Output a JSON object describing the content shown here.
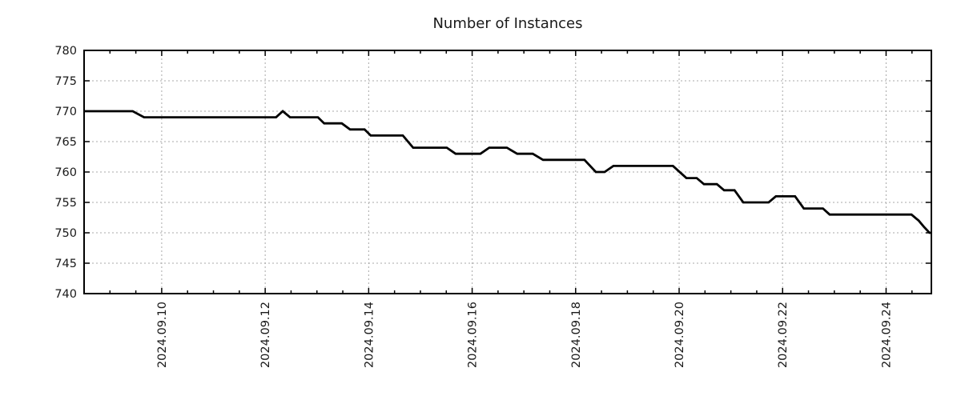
{
  "chart_data": {
    "type": "line",
    "title": "Number of Instances",
    "legend": "none",
    "grid": "on",
    "line_color": "#000000",
    "grid_color": "#a9a9a9",
    "axis_color": "#000000",
    "label_color": "#1a1a1a",
    "background_color": "#ffffff",
    "x_axis": {
      "kind": "date",
      "tick_labels": [
        "2024.09.10",
        "2024.09.12",
        "2024.09.14",
        "2024.09.16",
        "2024.09.18",
        "2024.09.20",
        "2024.09.22",
        "2024.09.24"
      ],
      "major_tick_days": [
        10,
        12,
        14,
        16,
        18,
        20,
        22,
        24
      ],
      "minor_tick_interval_days": 0.5,
      "range_days": [
        8.5,
        24.875
      ],
      "label_rotation_deg": -90
    },
    "y_axis": {
      "ticks": [
        740,
        745,
        750,
        755,
        760,
        765,
        770,
        775,
        780
      ],
      "range": [
        740,
        780
      ]
    },
    "series": [
      {
        "name": "instances",
        "points_day_value": [
          [
            8.5,
            770
          ],
          [
            9.44,
            770
          ],
          [
            9.66,
            769
          ],
          [
            12.21,
            769
          ],
          [
            12.34,
            770
          ],
          [
            12.48,
            769
          ],
          [
            13.02,
            769
          ],
          [
            13.14,
            768
          ],
          [
            13.48,
            768
          ],
          [
            13.64,
            767
          ],
          [
            13.92,
            767
          ],
          [
            14.04,
            766
          ],
          [
            14.66,
            766
          ],
          [
            14.86,
            764
          ],
          [
            15.51,
            764
          ],
          [
            15.68,
            763
          ],
          [
            16.16,
            763
          ],
          [
            16.33,
            764
          ],
          [
            16.67,
            764
          ],
          [
            16.87,
            763
          ],
          [
            17.17,
            763
          ],
          [
            17.37,
            762
          ],
          [
            18.17,
            762
          ],
          [
            18.39,
            760
          ],
          [
            18.56,
            760
          ],
          [
            18.73,
            761
          ],
          [
            19.88,
            761
          ],
          [
            20.14,
            759
          ],
          [
            20.34,
            759
          ],
          [
            20.48,
            758
          ],
          [
            20.73,
            758
          ],
          [
            20.87,
            757
          ],
          [
            21.07,
            757
          ],
          [
            21.24,
            755
          ],
          [
            21.73,
            755
          ],
          [
            21.87,
            756
          ],
          [
            22.24,
            756
          ],
          [
            22.41,
            754
          ],
          [
            22.78,
            754
          ],
          [
            22.91,
            753
          ],
          [
            24.49,
            753
          ],
          [
            24.63,
            752
          ],
          [
            24.73,
            751
          ],
          [
            24.84,
            750
          ],
          [
            24.87,
            750
          ]
        ]
      }
    ]
  }
}
